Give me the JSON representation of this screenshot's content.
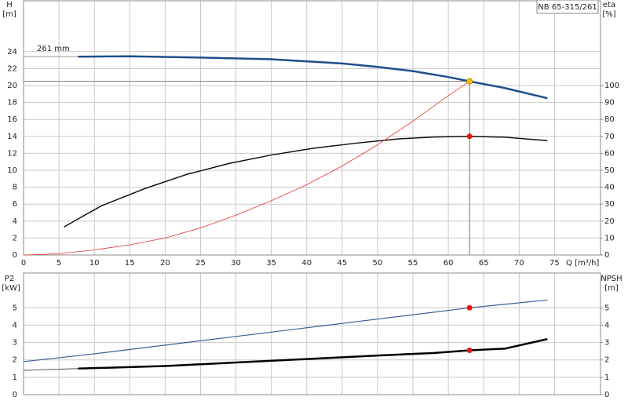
{
  "chart_data": [
    {
      "type": "line",
      "title": "NB 65-315/261",
      "xlabel": "Q [m³/h]",
      "ylabel": "H",
      "ylabel_unit": "[m]",
      "y2label": "eta",
      "y2label_unit": "[%]",
      "annotations": [
        "261 mm"
      ],
      "xlim": [
        0,
        81.5
      ],
      "xticks": [
        0,
        5,
        10,
        15,
        20,
        25,
        30,
        35,
        40,
        45,
        50,
        55,
        60,
        65,
        70,
        75
      ],
      "show_xtick_labels": true,
      "ylim": [
        0,
        30
      ],
      "yticks": [
        0,
        2,
        4,
        6,
        8,
        10,
        12,
        14,
        16,
        18,
        20,
        22,
        24
      ],
      "y2lim": [
        0,
        150
      ],
      "y2ticks": [
        0,
        10,
        20,
        30,
        40,
        50,
        60,
        70,
        80,
        90,
        100
      ],
      "grid": true,
      "series": [
        {
          "color": "#999999",
          "width": 1,
          "axis": "y",
          "x": [
            0,
            7.7
          ],
          "values": [
            23.4,
            23.4
          ]
        },
        {
          "color": "#1f4e8c",
          "width": 2.5,
          "axis": "y",
          "x": [
            7.7,
            15,
            25,
            35,
            45,
            50,
            55,
            60,
            63,
            68,
            74
          ],
          "values": [
            23.4,
            23.45,
            23.3,
            23.1,
            22.6,
            22.2,
            21.7,
            21.0,
            20.5,
            19.7,
            18.5
          ]
        },
        {
          "color": "#111111",
          "width": 1.5,
          "axis": "y2",
          "x": [
            5.7,
            8,
            11,
            17,
            23,
            29,
            35,
            41,
            47,
            53,
            58,
            63,
            68,
            74
          ],
          "values": [
            16.5,
            22,
            29,
            39,
            47.5,
            54,
            59,
            63,
            66,
            68.5,
            69.6,
            70,
            69.5,
            67.5
          ]
        },
        {
          "color": "#e8342a",
          "width": 0.8,
          "axis": "y",
          "x": [
            0,
            5,
            10,
            15,
            20,
            25,
            30,
            35,
            40,
            45,
            50,
            55,
            60,
            63
          ],
          "values": [
            0,
            0.15,
            0.6,
            1.2,
            2.0,
            3.2,
            4.7,
            6.4,
            8.3,
            10.5,
            13,
            15.8,
            18.8,
            20.5
          ]
        }
      ],
      "points": [
        {
          "x": 63,
          "y": 20.5,
          "axis": "y",
          "color": "#f5c400",
          "crosshair": true
        },
        {
          "x": 63,
          "y": 70,
          "axis": "y2",
          "color": "#e8160c",
          "crosshair": false
        }
      ]
    },
    {
      "type": "line",
      "ylabel": "P2",
      "ylabel_unit": "[kW]",
      "y2label": "NPSH",
      "y2label_unit": "[m]",
      "xlim": [
        0,
        81.5
      ],
      "xticks": [
        0,
        5,
        10,
        15,
        20,
        25,
        30,
        35,
        40,
        45,
        50,
        55,
        60,
        65,
        70,
        75
      ],
      "show_xtick_labels": false,
      "ylim": [
        0,
        7
      ],
      "yticks": [
        0,
        1,
        2,
        3,
        4,
        5
      ],
      "y2lim": [
        0,
        7
      ],
      "y2ticks": [
        0,
        1,
        2,
        3,
        4,
        5
      ],
      "grid": true,
      "series": [
        {
          "color": "#3a5e94",
          "width": 1.2,
          "axis": "y",
          "x": [
            0,
            10,
            20,
            30,
            40,
            50,
            63,
            74
          ],
          "values": [
            1.9,
            2.35,
            2.85,
            3.35,
            3.85,
            4.35,
            5.0,
            5.45
          ]
        },
        {
          "color": "#555555",
          "width": 1,
          "axis": "y2",
          "x": [
            0,
            7.7
          ],
          "values": [
            1.4,
            1.5
          ]
        },
        {
          "color": "#000000",
          "width": 2.5,
          "axis": "y2",
          "x": [
            7.7,
            20,
            30,
            40,
            50,
            58,
            63,
            68,
            74
          ],
          "values": [
            1.5,
            1.65,
            1.85,
            2.05,
            2.25,
            2.4,
            2.55,
            2.65,
            3.2
          ]
        }
      ],
      "points": [
        {
          "x": 63,
          "y": 5.0,
          "axis": "y",
          "color": "#e8160c",
          "crosshair": false
        },
        {
          "x": 63,
          "y": 2.55,
          "axis": "y2",
          "color": "#e8160c",
          "crosshair": false
        }
      ]
    }
  ]
}
